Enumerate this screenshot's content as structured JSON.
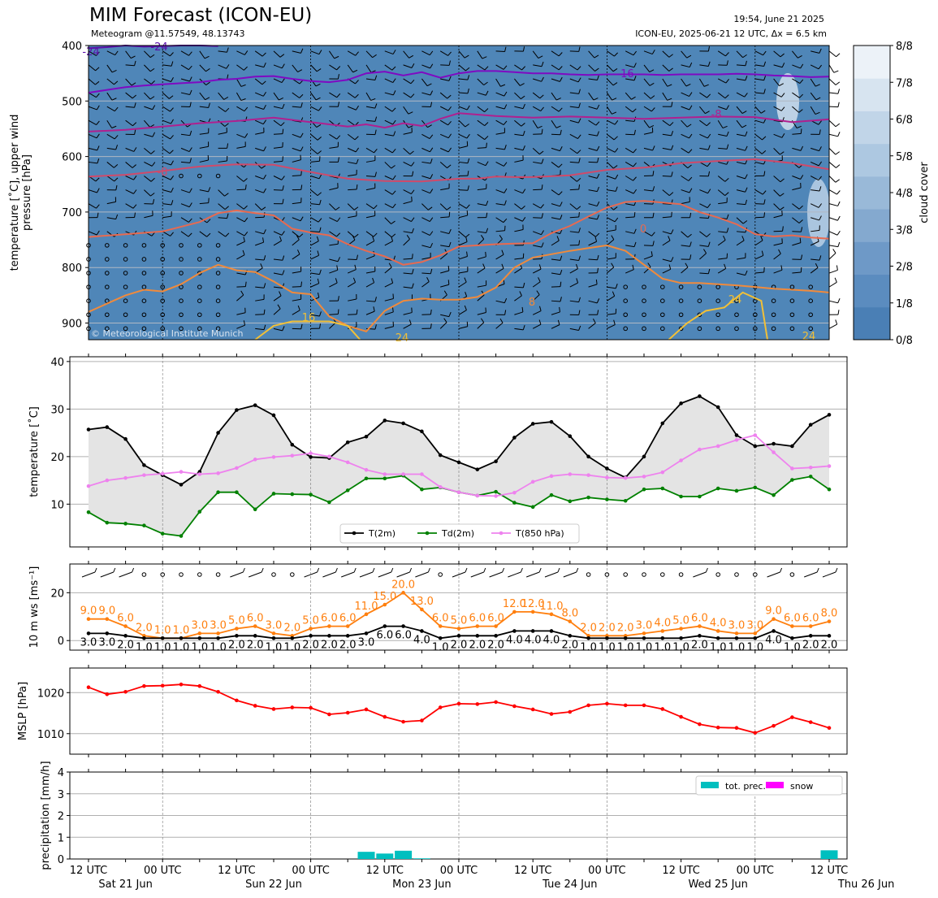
{
  "header": {
    "title": "MIM Forecast (ICON-EU)",
    "subtitle": "Meteogram @11.57549, 48.13743",
    "timestamp": "19:54, June 21 2025",
    "run_info": "ICON-EU, 2025-06-21 12 UTC, Δx = 6.5 km",
    "copyright": "© Meteorological Institute Munich"
  },
  "x_axis": {
    "ticks": [
      "12 UTC",
      "00 UTC",
      "12 UTC",
      "00 UTC",
      "12 UTC",
      "00 UTC",
      "12 UTC",
      "00 UTC",
      "12 UTC",
      "00 UTC",
      "12 UTC"
    ],
    "day_labels": [
      "Sat 21 Jun",
      "Sun 22 Jun",
      "Mon 23 Jun",
      "Tue 24 Jun",
      "Wed 25 Jun",
      "Thu 26 Jun"
    ],
    "hours_start": 0,
    "hours_end": 120,
    "step_hours": 3
  },
  "colors": {
    "cloud_base": "#4f86b8",
    "t2m": "#000000",
    "td2m": "#008000",
    "t850": "#ee82ee",
    "wind_max": "#ff7f0e",
    "wind_mean": "#000000",
    "mslp": "#ff0000",
    "precip": "#00bfbf",
    "snow": "#ff00ff",
    "fill_band": "#e4e4e4"
  },
  "chart_data": [
    {
      "panel": "upper_air",
      "type": "contour",
      "ylabel": "temperature [˚C], upper wind\npressure [hPa]",
      "ylim": [
        930,
        400
      ],
      "yticks": [
        400,
        500,
        600,
        700,
        800,
        900
      ],
      "colorbar": {
        "label": "cloud cover",
        "ticks": [
          "0/8",
          "1/8",
          "2/8",
          "3/8",
          "4/8",
          "5/8",
          "6/8",
          "7/8",
          "8/8"
        ],
        "colors": [
          "#4a7fb5",
          "#5b8cbf",
          "#6e99c7",
          "#84a9cf",
          "#99b9d8",
          "#adc8e1",
          "#c1d5e8",
          "#d7e4f0",
          "#ecf2f8"
        ]
      },
      "series": [
        {
          "name": "-24",
          "color": "#5a0fa8",
          "x": [
            0,
            3,
            6,
            9,
            12,
            15,
            18,
            21
          ],
          "y": [
            405,
            403,
            400,
            402,
            401,
            400,
            400,
            401
          ]
        },
        {
          "name": "-16",
          "color": "#7f0ac2",
          "x": [
            0,
            3,
            6,
            9,
            12,
            15,
            18,
            21,
            24,
            27,
            30,
            33,
            36,
            39,
            42,
            45,
            48,
            51,
            54,
            57,
            60,
            63,
            66,
            69,
            72,
            75,
            78,
            81,
            84,
            87,
            90,
            93,
            96,
            99,
            102,
            105,
            108,
            111,
            114,
            117,
            120
          ],
          "y": [
            485,
            480,
            475,
            472,
            470,
            468,
            466,
            462,
            460,
            456,
            455,
            460,
            464,
            466,
            462,
            450,
            447,
            454,
            448,
            458,
            450,
            446,
            446,
            448,
            450,
            450,
            452,
            453,
            452,
            452,
            452,
            453,
            452,
            452,
            452,
            451,
            452,
            454,
            455,
            457,
            456
          ]
        },
        {
          "name": "-8",
          "color": "#b0208f",
          "x": [
            0,
            6,
            12,
            18,
            24,
            30,
            36,
            42,
            45,
            48,
            51,
            54,
            57,
            60,
            66,
            72,
            78,
            84,
            90,
            96,
            102,
            108,
            114,
            120
          ],
          "y": [
            555,
            552,
            546,
            540,
            536,
            530,
            538,
            546,
            542,
            548,
            540,
            545,
            532,
            522,
            527,
            530,
            528,
            530,
            532,
            530,
            528,
            529,
            538,
            533
          ]
        },
        {
          "name": "0",
          "color": "#d04a6a",
          "x": [
            0,
            6,
            12,
            18,
            24,
            30,
            36,
            42,
            48,
            54,
            60,
            63,
            66,
            69,
            72,
            78,
            84,
            90,
            96,
            102,
            108,
            114,
            120
          ],
          "y": [
            636,
            633,
            626,
            618,
            614,
            615,
            628,
            640,
            644,
            645,
            640,
            640,
            636,
            637,
            637,
            634,
            624,
            620,
            612,
            608,
            605,
            612,
            623
          ]
        },
        {
          "name": "8",
          "color": "#e86a50",
          "x": [
            0,
            6,
            12,
            18,
            21,
            24,
            27,
            30,
            33,
            36,
            39,
            42,
            45,
            48,
            51,
            54,
            57,
            60,
            63,
            66,
            69,
            72,
            75,
            78,
            81,
            84,
            87,
            90,
            93,
            96,
            99,
            102,
            105,
            108,
            111,
            114,
            117,
            120
          ],
          "y": [
            745,
            740,
            735,
            718,
            702,
            697,
            702,
            706,
            730,
            737,
            742,
            758,
            770,
            780,
            795,
            790,
            778,
            762,
            760,
            758,
            757,
            756,
            738,
            725,
            708,
            692,
            682,
            680,
            683,
            686,
            700,
            710,
            722,
            740,
            744,
            742,
            746,
            748
          ]
        },
        {
          "name": "16",
          "color": "#f08a3c",
          "x": [
            0,
            3,
            6,
            9,
            12,
            15,
            18,
            21,
            24,
            27,
            30,
            33,
            36,
            39,
            42,
            45,
            48,
            51,
            54,
            57,
            60,
            63,
            66,
            69,
            72,
            75,
            78,
            81,
            84,
            87,
            90,
            93,
            96,
            99,
            102,
            105,
            108,
            111,
            114,
            117,
            120
          ],
          "y": [
            880,
            865,
            850,
            840,
            843,
            830,
            810,
            795,
            805,
            808,
            825,
            845,
            848,
            888,
            905,
            915,
            878,
            860,
            856,
            858,
            858,
            853,
            836,
            800,
            782,
            776,
            770,
            765,
            760,
            770,
            795,
            820,
            828,
            828,
            830,
            832,
            835,
            838,
            840,
            842,
            845
          ]
        },
        {
          "name": "24",
          "color": "#f2c037",
          "x": [
            27,
            30,
            33,
            36,
            39,
            42,
            44
          ],
          "y": [
            930,
            905,
            897,
            897,
            897,
            905,
            930
          ]
        },
        {
          "name": "24",
          "color": "#f2c037",
          "x": [
            94,
            97,
            100,
            103,
            106,
            109,
            110
          ],
          "y": [
            930,
            900,
            878,
            872,
            845,
            860,
            930
          ]
        }
      ],
      "contour_labels": [
        "-24",
        "-24",
        "-16",
        "-8",
        "-8",
        "0",
        "8",
        "16",
        "24",
        "24",
        "24"
      ]
    },
    {
      "panel": "temperature",
      "type": "line",
      "ylabel": "temperature [˚C]",
      "ylim": [
        1,
        41
      ],
      "yticks": [
        10,
        20,
        30,
        40
      ],
      "grid": true,
      "legend": "bottom-center",
      "x": [
        0,
        3,
        6,
        9,
        12,
        15,
        18,
        21,
        24,
        27,
        30,
        33,
        36,
        39,
        42,
        45,
        48,
        51,
        54,
        57,
        60,
        63,
        66,
        69,
        72,
        75,
        78,
        81,
        84,
        87,
        90,
        93,
        96,
        99,
        102,
        105,
        108,
        111,
        114,
        117,
        120
      ],
      "series": [
        {
          "name": "T(2m)",
          "color": "#000000",
          "values": [
            25.7,
            26.2,
            23.7,
            18.2,
            16.1,
            14.1,
            16.8,
            25.0,
            29.8,
            30.8,
            28.7,
            22.5,
            19.9,
            19.7,
            23.0,
            24.2,
            27.6,
            27.0,
            25.3,
            20.3,
            18.8,
            17.3,
            19.0,
            24.0,
            26.9,
            27.3,
            24.3,
            20.0,
            17.5,
            15.6,
            20.0,
            27.0,
            31.2,
            32.7,
            30.4,
            24.5,
            22.2,
            22.7,
            22.2,
            26.7,
            28.8
          ]
        },
        {
          "name": "Td(2m)",
          "color": "#008000",
          "values": [
            8.3,
            6.1,
            5.9,
            5.5,
            3.8,
            3.3,
            8.4,
            12.5,
            12.5,
            8.9,
            12.2,
            12.1,
            12.0,
            10.4,
            12.9,
            15.4,
            15.4,
            16.0,
            13.1,
            13.5,
            12.5,
            11.8,
            12.6,
            10.3,
            9.4,
            11.9,
            10.6,
            11.4,
            11.0,
            10.7,
            13.1,
            13.3,
            11.6,
            11.6,
            13.3,
            12.8,
            13.5,
            11.9,
            15.1,
            15.8,
            13.1
          ]
        },
        {
          "name": "T(850 hPa)",
          "color": "#ee82ee",
          "values": [
            13.8,
            15.0,
            15.5,
            16.1,
            16.4,
            16.8,
            16.3,
            16.5,
            17.6,
            19.4,
            19.9,
            20.2,
            20.7,
            20.0,
            18.8,
            17.2,
            16.3,
            16.3,
            16.3,
            13.6,
            12.5,
            11.8,
            11.7,
            12.4,
            14.7,
            15.9,
            16.3,
            16.1,
            15.6,
            15.5,
            15.8,
            16.7,
            19.2,
            21.5,
            22.2,
            23.5,
            24.5,
            20.9,
            17.5,
            17.7,
            18.0
          ]
        }
      ]
    },
    {
      "panel": "wind",
      "type": "line",
      "ylabel": "10 m ws [ms⁻¹]",
      "ylim": [
        -4,
        32
      ],
      "yticks": [
        0,
        20
      ],
      "grid": true,
      "x": [
        0,
        3,
        6,
        9,
        12,
        15,
        18,
        21,
        24,
        27,
        30,
        33,
        36,
        39,
        42,
        45,
        48,
        51,
        54,
        57,
        60,
        63,
        66,
        69,
        72,
        75,
        78,
        81,
        84,
        87,
        90,
        93,
        96,
        99,
        102,
        105,
        108,
        111,
        114,
        117,
        120
      ],
      "series": [
        {
          "name": "max",
          "color": "#ff7f0e",
          "values": [
            9.0,
            9.0,
            6.0,
            2.0,
            1.0,
            1.0,
            3.0,
            3.0,
            5.0,
            6.0,
            3.0,
            2.0,
            5.0,
            6.0,
            6.0,
            11.0,
            15.0,
            20.0,
            13.0,
            6.0,
            5.0,
            6.0,
            6.0,
            12.0,
            12.0,
            11.0,
            8.0,
            2.0,
            2.0,
            2.0,
            3.0,
            4.0,
            5.0,
            6.0,
            4.0,
            3.0,
            3.0,
            9.0,
            6.0,
            6.0,
            8.0
          ],
          "labels": [
            "9.0",
            "9.0",
            "6.0",
            "2.0",
            "1.0",
            "1.0",
            "3.0",
            "3.0",
            "5.0",
            "6.0",
            "3.0",
            "2.0",
            "5.0",
            "6.0",
            "6.0",
            "11.0",
            "15.0",
            "20.0",
            "13.0",
            "6.0",
            "5.0",
            "6.0",
            "6.0",
            "12.0",
            "12.0",
            "11.0",
            "8.0",
            "2.0",
            "2.0",
            "2.0",
            "3.0",
            "4.0",
            "5.0",
            "6.0",
            "4.0",
            "3.0",
            "3.0",
            "9.0",
            "6.0",
            "6.0",
            "8.0"
          ]
        },
        {
          "name": "mean",
          "color": "#000000",
          "values": [
            3.0,
            3.0,
            2.0,
            1.0,
            1.0,
            1.0,
            1.0,
            1.0,
            2.0,
            2.0,
            1.0,
            1.0,
            2.0,
            2.0,
            2.0,
            3.0,
            6.0,
            6.0,
            4.0,
            1.0,
            2.0,
            2.0,
            2.0,
            4.0,
            4.0,
            4.0,
            2.0,
            1.0,
            1.0,
            1.0,
            1.0,
            1.0,
            1.0,
            2.0,
            1.0,
            1.0,
            1.0,
            4.0,
            1.0,
            2.0,
            2.0
          ],
          "labels": [
            "3.0",
            "3.0",
            "2.0",
            "1.0",
            "1.0",
            "1.0",
            "1.0",
            "1.0",
            "2.0",
            "2.0",
            "1.0",
            "1.0",
            "2.0",
            "2.0",
            "2.0",
            "3.0",
            "6.0",
            "6.0",
            "4.0",
            "1.0",
            "2.0",
            "2.0",
            "2.0",
            "4.0",
            "4.0",
            "4.0",
            "2.0",
            "1.0",
            "1.0",
            "1.0",
            "1.0",
            "1.0",
            "1.0",
            "2.0",
            "1.0",
            "1.0",
            "1.0",
            "4.0",
            "1.0",
            "2.0",
            "2.0"
          ]
        }
      ]
    },
    {
      "panel": "mslp",
      "type": "line",
      "ylabel": "MSLP [hPa]",
      "ylim": [
        1005,
        1026
      ],
      "yticks": [
        1010,
        1020
      ],
      "grid": true,
      "x": [
        0,
        3,
        6,
        9,
        12,
        15,
        18,
        21,
        24,
        27,
        30,
        33,
        36,
        39,
        42,
        45,
        48,
        51,
        54,
        57,
        60,
        63,
        66,
        69,
        72,
        75,
        78,
        81,
        84,
        87,
        90,
        93,
        96,
        99,
        102,
        105,
        108,
        111,
        114,
        117,
        120
      ],
      "series": [
        {
          "name": "MSLP",
          "color": "#ff0000",
          "values": [
            1021.3,
            1019.6,
            1020.2,
            1021.6,
            1021.7,
            1022.0,
            1021.6,
            1020.2,
            1018.1,
            1016.8,
            1016.0,
            1016.4,
            1016.3,
            1014.7,
            1015.1,
            1015.9,
            1014.1,
            1012.9,
            1013.2,
            1016.4,
            1017.3,
            1017.2,
            1017.7,
            1016.7,
            1015.9,
            1014.8,
            1015.3,
            1016.9,
            1017.3,
            1016.9,
            1016.9,
            1016.0,
            1014.1,
            1012.3,
            1011.5,
            1011.4,
            1010.2,
            1011.9,
            1014.0,
            1012.8,
            1011.4
          ]
        }
      ]
    },
    {
      "panel": "precipitation",
      "type": "bar",
      "ylabel": "precipitation [mm/h]",
      "ylim": [
        0,
        4
      ],
      "yticks": [
        0,
        1,
        2,
        3,
        4
      ],
      "grid": true,
      "legend": "top-right",
      "x": [
        45,
        48,
        51,
        54,
        120
      ],
      "series": [
        {
          "name": "tot. prec.",
          "color": "#00bfbf",
          "values": [
            0.33,
            0.25,
            0.38,
            0.03,
            0.4
          ]
        },
        {
          "name": "snow",
          "color": "#ff00ff",
          "values": [
            0,
            0,
            0,
            0,
            0
          ]
        }
      ]
    }
  ]
}
